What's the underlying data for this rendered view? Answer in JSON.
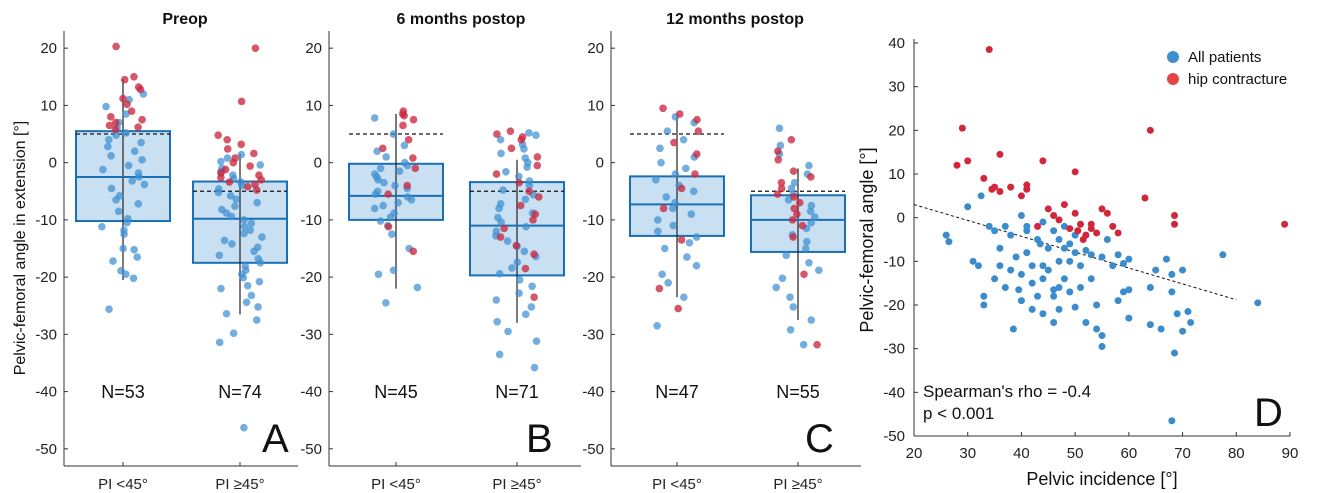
{
  "chart_data": [
    {
      "type": "box",
      "title": "Preop",
      "ylabel": "Pelvic-femoral angle in extension [°]",
      "ylim": [
        -53,
        23
      ],
      "yticks": [
        20,
        10,
        0,
        -10,
        -20,
        -30,
        -40,
        -50
      ],
      "categories": [
        "PI <45°",
        "PI ≥45°"
      ],
      "panel_letter": "A",
      "groups": [
        {
          "label": "PI <45°",
          "n_label": "N=53",
          "q1": -10.2,
          "median": -2.5,
          "q3": 5.5,
          "whisker_low": -20.5,
          "whisker_high": 14.5,
          "reference": 5.0,
          "points_blue": [
            -25.6,
            -20.2,
            -19.5,
            -18.9,
            -17.2,
            -16.5,
            -15.2,
            -15.0,
            -12.5,
            -11.8,
            -11.2,
            -10.5,
            -9.8,
            -8.5,
            -7.2,
            -6.5,
            -5.8,
            -4.5,
            -3.8,
            -3.2,
            -2.5,
            -1.8,
            -1.2,
            -0.5,
            0.5,
            1.2,
            2.0,
            2.8,
            3.5,
            4.0,
            4.8,
            5.2,
            6.0,
            7.0,
            8.5,
            9.8,
            11.0,
            12.0
          ],
          "points_red": [
            5.8,
            6.2,
            6.5,
            7.0,
            7.5,
            8.0,
            9.0,
            10.2,
            11.2,
            12.8,
            13.2,
            14.5,
            15.0,
            20.3
          ]
        },
        {
          "label": "PI ≥45°",
          "n_label": "N=74",
          "q1": -17.5,
          "median": -9.8,
          "q3": -3.3,
          "whisker_low": -26.5,
          "whisker_high": 1.5,
          "reference": -5.0,
          "points_blue": [
            -46.3,
            -31.4,
            -29.8,
            -27.5,
            -26.4,
            -25.2,
            -24.4,
            -23.2,
            -22.0,
            -21.5,
            -20.8,
            -20.1,
            -19.5,
            -18.8,
            -18.1,
            -17.5,
            -16.8,
            -16.2,
            -15.5,
            -14.8,
            -14.2,
            -13.6,
            -13.0,
            -12.4,
            -11.8,
            -11.2,
            -10.6,
            -10.0,
            -9.4,
            -8.8,
            -8.2,
            -7.6,
            -7.0,
            -6.4,
            -5.8,
            -5.2,
            -4.6,
            -4.0,
            -3.4,
            -2.8,
            -2.2,
            -1.6,
            -1.0,
            -0.4,
            0.2,
            0.8,
            1.4
          ],
          "points_red": [
            -4.8,
            -4.2,
            -3.8,
            -3.4,
            -3.0,
            -2.6,
            -2.2,
            -1.8,
            -1.2,
            -0.6,
            0.0,
            0.8,
            1.6,
            2.4,
            3.2,
            4.0,
            4.8,
            10.7,
            20.0
          ]
        }
      ]
    },
    {
      "type": "box",
      "title": "6 months postop",
      "ylim": [
        -53,
        23
      ],
      "yticks": [
        20,
        10,
        0,
        -10,
        -20,
        -30,
        -40,
        -50
      ],
      "categories": [
        "PI <45°",
        "PI ≥45°"
      ],
      "panel_letter": "B",
      "groups": [
        {
          "label": "PI <45°",
          "n_label": "N=45",
          "q1": -10.0,
          "median": -5.8,
          "q3": -0.2,
          "whisker_low": -22.0,
          "whisker_high": 8.5,
          "reference": 5.0,
          "points_blue": [
            -24.5,
            -21.8,
            -19.5,
            -18.8,
            -15.0,
            -12.5,
            -11.0,
            -10.2,
            -9.5,
            -8.8,
            -8.0,
            -7.5,
            -7.0,
            -6.5,
            -6.0,
            -5.5,
            -5.0,
            -4.5,
            -4.0,
            -3.5,
            -3.0,
            -2.5,
            -2.0,
            -1.5,
            -1.0,
            -0.5,
            0.0,
            1.0,
            2.0,
            3.0,
            5.0,
            7.8
          ],
          "points_red": [
            -15.5,
            -11.2,
            -5.5,
            -4.0,
            -1.0,
            0.8,
            2.5,
            4.0,
            6.5,
            7.5,
            8.2,
            8.5,
            9.0
          ]
        },
        {
          "label": "PI ≥45°",
          "n_label": "N=71",
          "q1": -19.7,
          "median": -11.0,
          "q3": -3.4,
          "whisker_low": -28.0,
          "whisker_high": 0.5,
          "reference": -5.0,
          "points_blue": [
            -35.8,
            -33.5,
            -31.2,
            -29.5,
            -27.8,
            -26.5,
            -25.2,
            -24.0,
            -22.8,
            -21.6,
            -20.5,
            -19.4,
            -18.4,
            -17.4,
            -16.4,
            -15.5,
            -14.6,
            -13.7,
            -12.8,
            -12.0,
            -11.2,
            -10.4,
            -9.6,
            -8.8,
            -8.0,
            -7.2,
            -6.4,
            -5.6,
            -4.8,
            -4.0,
            -3.2,
            -2.4,
            -1.6,
            -0.8,
            0.0,
            0.8,
            1.6,
            2.4,
            3.2,
            4.0,
            4.8,
            5.2
          ],
          "points_red": [
            -23.5,
            -18.5,
            -16.0,
            -14.5,
            -13.0,
            -11.5,
            -10.0,
            -9.0,
            -7.5,
            -6.0,
            -5.0,
            -3.5,
            -2.0,
            -0.5,
            1.0,
            2.5,
            4.0,
            4.5,
            5.0,
            5.5
          ]
        }
      ]
    },
    {
      "type": "box",
      "title": "12 months postop",
      "ylim": [
        -53,
        23
      ],
      "yticks": [
        20,
        10,
        0,
        -10,
        -20,
        -30,
        -40,
        -50
      ],
      "categories": [
        "PI <45°",
        "PI ≥45°"
      ],
      "panel_letter": "C",
      "groups": [
        {
          "label": "PI <45°",
          "n_label": "N=47",
          "q1": -12.8,
          "median": -7.3,
          "q3": -2.4,
          "whisker_low": -23.5,
          "whisker_high": 8.0,
          "reference": 5.0,
          "points_blue": [
            -28.5,
            -23.5,
            -21.0,
            -19.5,
            -18.0,
            -16.5,
            -15.0,
            -14.0,
            -13.0,
            -12.0,
            -11.0,
            -10.0,
            -9.0,
            -8.0,
            -7.0,
            -6.0,
            -5.0,
            -4.0,
            -3.0,
            -2.0,
            -1.0,
            0.0,
            1.0,
            2.5,
            4.0,
            5.5,
            7.0,
            8.0
          ],
          "points_red": [
            -25.5,
            -22.0,
            -13.5,
            -8.0,
            -4.5,
            -2.0,
            1.5,
            3.5,
            5.5,
            7.5,
            8.5,
            9.5
          ]
        },
        {
          "label": "PI ≥45°",
          "n_label": "N=55",
          "q1": -15.6,
          "median": -10.0,
          "q3": -5.7,
          "whisker_low": -27.5,
          "whisker_high": -1.0,
          "reference": -5.0,
          "points_blue": [
            -31.8,
            -29.2,
            -27.5,
            -25.2,
            -23.5,
            -21.8,
            -20.2,
            -18.8,
            -17.5,
            -16.2,
            -15.0,
            -13.8,
            -12.6,
            -11.5,
            -10.5,
            -9.5,
            -8.5,
            -7.5,
            -6.5,
            -5.5,
            -4.5,
            -3.5,
            -2.0,
            -0.5,
            1.5,
            3.0,
            6.0
          ],
          "points_red": [
            -31.8,
            -19.5,
            -13.0,
            -11.0,
            -10.0,
            -9.0,
            -8.0,
            -7.0,
            -6.0,
            -5.5,
            -4.5,
            -3.5,
            -2.5,
            -1.5,
            0.5,
            2.0,
            4.0
          ]
        }
      ]
    },
    {
      "type": "scatter",
      "xlabel": "Pelvic incidence [°]",
      "ylabel": "Pelvic-femoral angle [°]",
      "xlim": [
        20,
        90
      ],
      "ylim": [
        -50,
        40
      ],
      "xticks": [
        20,
        30,
        40,
        50,
        60,
        70,
        80,
        90
      ],
      "yticks": [
        40,
        30,
        20,
        10,
        0,
        -10,
        -20,
        -30,
        -40,
        -50
      ],
      "legend": [
        {
          "name": "All patients",
          "color": "#3d8fd1"
        },
        {
          "name": "hip contracture",
          "color": "#e64545"
        }
      ],
      "annotation_lines": [
        "Spearman's rho = -0.4",
        "p < 0.001"
      ],
      "panel_letter": "D",
      "trendline": {
        "x": [
          20,
          80
        ],
        "y": [
          3.0,
          -18.8
        ]
      },
      "series": [
        {
          "name": "All patients",
          "color": "#3d8fd1",
          "points": [
            [
              26,
              -4
            ],
            [
              26.5,
              -5.5
            ],
            [
              30,
              2.5
            ],
            [
              31,
              -10
            ],
            [
              32,
              -11
            ],
            [
              32.5,
              5
            ],
            [
              33,
              -20
            ],
            [
              33,
              -18
            ],
            [
              34,
              -2
            ],
            [
              35,
              -3
            ],
            [
              35,
              -14
            ],
            [
              36,
              -11
            ],
            [
              36,
              -7
            ],
            [
              37,
              -2
            ],
            [
              37,
              -16
            ],
            [
              38,
              -4
            ],
            [
              38,
              -12
            ],
            [
              38.5,
              -25.5
            ],
            [
              39,
              -9
            ],
            [
              39.5,
              -16.5
            ],
            [
              40,
              -13
            ],
            [
              40,
              0.5
            ],
            [
              40,
              -19
            ],
            [
              41,
              -2
            ],
            [
              41,
              -8
            ],
            [
              41,
              -3
            ],
            [
              42,
              -11
            ],
            [
              42,
              -21
            ],
            [
              42,
              -15
            ],
            [
              43,
              -5
            ],
            [
              43,
              -18
            ],
            [
              43.5,
              -6
            ],
            [
              44,
              -1
            ],
            [
              44,
              -14
            ],
            [
              44,
              -22
            ],
            [
              44,
              -11
            ],
            [
              45,
              -12
            ],
            [
              45,
              -7
            ],
            [
              46,
              -18
            ],
            [
              46,
              -16.5
            ],
            [
              46,
              -24
            ],
            [
              46,
              -3
            ],
            [
              47,
              -16
            ],
            [
              47,
              -5
            ],
            [
              47,
              -10
            ],
            [
              47,
              -21
            ],
            [
              48,
              -14
            ],
            [
              48,
              -2
            ],
            [
              48,
              -7
            ],
            [
              49,
              -10
            ],
            [
              49,
              -17
            ],
            [
              49,
              -6
            ],
            [
              50,
              -8
            ],
            [
              50,
              -20.5
            ],
            [
              50,
              -4
            ],
            [
              51,
              -11
            ],
            [
              51,
              -16
            ],
            [
              52,
              -7.5
            ],
            [
              52,
              -24
            ],
            [
              53,
              -8.5
            ],
            [
              53,
              -14
            ],
            [
              54,
              -20
            ],
            [
              54,
              -25.5
            ],
            [
              55,
              -27
            ],
            [
              55,
              -29.5
            ],
            [
              55,
              -9
            ],
            [
              56,
              -5
            ],
            [
              57,
              -11
            ],
            [
              58,
              -8.5
            ],
            [
              58,
              -19
            ],
            [
              59,
              -10.5
            ],
            [
              59,
              -17
            ],
            [
              60,
              -9.5
            ],
            [
              60,
              -16.5
            ],
            [
              60,
              -23
            ],
            [
              64,
              -24.5
            ],
            [
              64,
              -16
            ],
            [
              65,
              -12
            ],
            [
              66,
              -25.5
            ],
            [
              67,
              -9.5
            ],
            [
              68,
              -17
            ],
            [
              68,
              -13
            ],
            [
              68,
              -46.5
            ],
            [
              68.5,
              -31
            ],
            [
              69,
              -22
            ],
            [
              70,
              -26
            ],
            [
              70,
              -12
            ],
            [
              71,
              -21.5
            ],
            [
              71.5,
              -24
            ],
            [
              77.5,
              -8.5
            ],
            [
              84,
              -19.5
            ]
          ]
        },
        {
          "name": "hip contracture",
          "color": "#e64545",
          "points": [
            [
              28,
              12
            ],
            [
              29,
              20.5
            ],
            [
              30,
              13
            ],
            [
              33,
              9
            ],
            [
              34,
              38.5
            ],
            [
              34.5,
              6.5
            ],
            [
              35,
              7
            ],
            [
              36,
              14.5
            ],
            [
              36,
              6
            ],
            [
              38,
              7
            ],
            [
              40,
              5
            ],
            [
              41,
              6.5
            ],
            [
              41,
              7.5
            ],
            [
              43,
              -2
            ],
            [
              44,
              13
            ],
            [
              45,
              2
            ],
            [
              46,
              0.5
            ],
            [
              47,
              -0.5
            ],
            [
              48,
              3
            ],
            [
              49,
              -2.5
            ],
            [
              50,
              1
            ],
            [
              50,
              10.5
            ],
            [
              50.5,
              -3
            ],
            [
              51,
              -1.5
            ],
            [
              51.5,
              -5
            ],
            [
              52,
              -4
            ],
            [
              53,
              -1.5
            ],
            [
              53,
              -2.5
            ],
            [
              54,
              -3.5
            ],
            [
              55,
              2
            ],
            [
              56,
              1
            ],
            [
              57,
              -2
            ],
            [
              58,
              -3.5
            ],
            [
              63,
              4.5
            ],
            [
              64,
              20
            ],
            [
              68.5,
              0.5
            ],
            [
              68.5,
              -1.5
            ],
            [
              89,
              -1.5
            ]
          ]
        }
      ]
    }
  ]
}
